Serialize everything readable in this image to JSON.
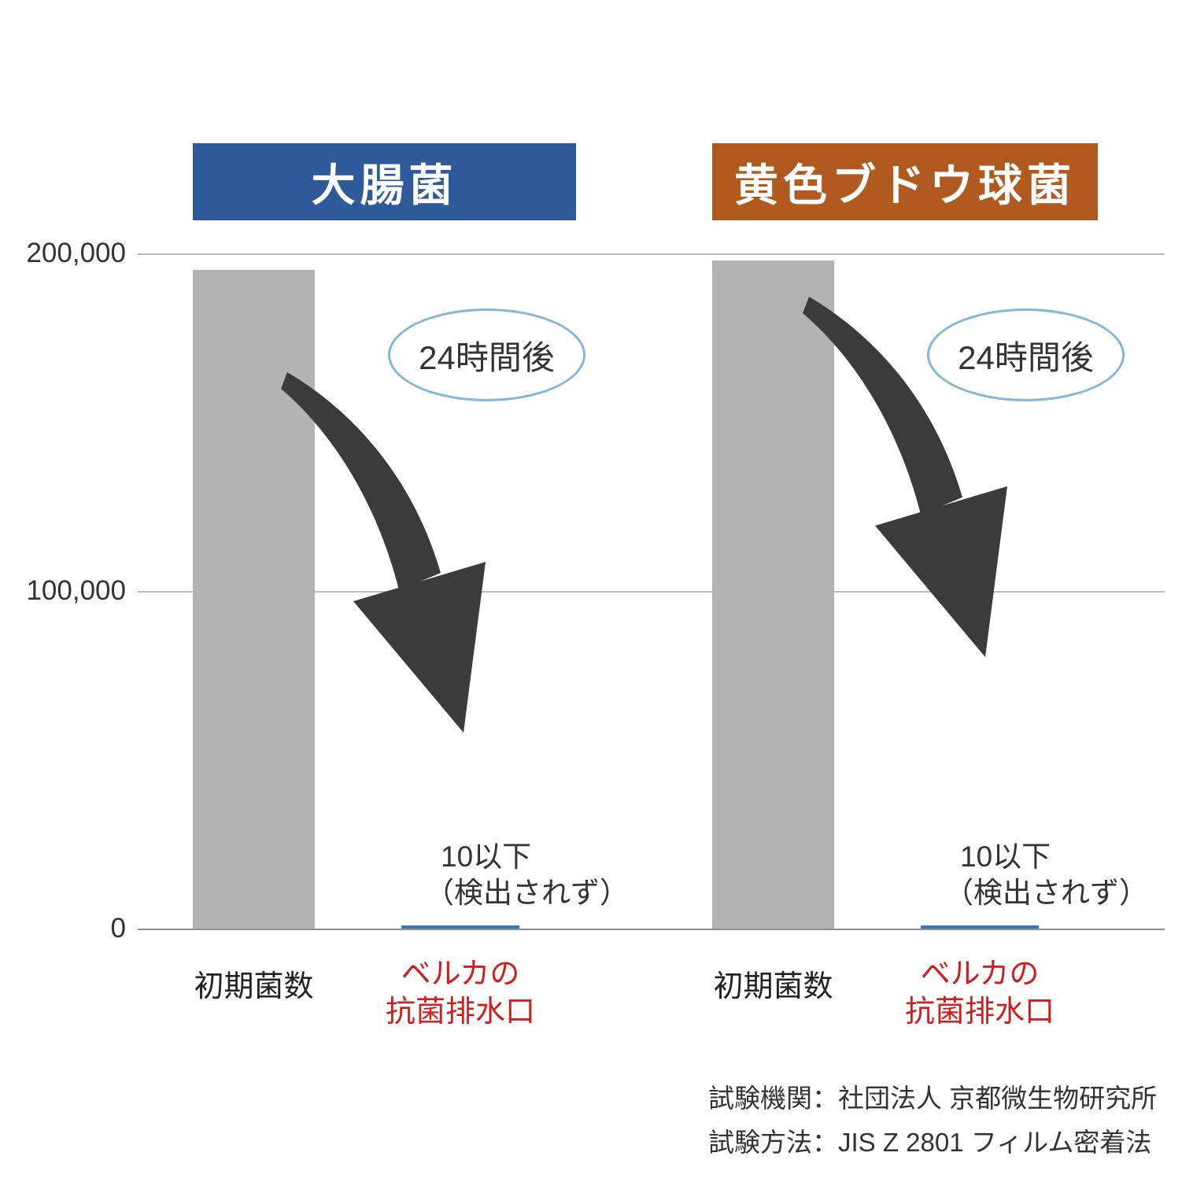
{
  "chart_data": [
    {
      "type": "bar",
      "title": "大腸菌",
      "categories": [
        "初期菌数",
        "ベルカの抗菌排水口"
      ],
      "values": [
        195000,
        10
      ],
      "ylim": [
        0,
        200000
      ],
      "yticks": [
        "0",
        "100,000",
        "200,000"
      ],
      "grid": true,
      "annotation": "24時間後",
      "result_line1": "10以下",
      "result_line2": "（検出されず）",
      "label_initial": "初期菌数",
      "label_after_line1": "ベルカの",
      "label_after_line2": "抗菌排水口"
    },
    {
      "type": "bar",
      "title": "黄色ブドウ球菌",
      "categories": [
        "初期菌数",
        "ベルカの抗菌排水口"
      ],
      "values": [
        198000,
        10
      ],
      "ylim": [
        0,
        200000
      ],
      "yticks": [
        "0",
        "100,000",
        "200,000"
      ],
      "grid": true,
      "annotation": "24時間後",
      "result_line1": "10以下",
      "result_line2": "（検出されず）",
      "label_initial": "初期菌数",
      "label_after_line1": "ベルカの",
      "label_after_line2": "抗菌排水口"
    }
  ],
  "y_axis": {
    "ticks": [
      "200,000",
      "100,000",
      "0"
    ]
  },
  "footer": {
    "line1": "試験機関：社団法人 京都微生物研究所",
    "line2": "試験方法：JIS Z 2801 フィルム密着法"
  },
  "colors": {
    "header_ecoli_blue": "#2e5a99",
    "header_staph_orange": "#b05a1f",
    "bar_gray": "#b3b3b3",
    "after_bar_blue": "#3a76b4",
    "label_red": "#d01e1e",
    "bubble_border_blue": "#84b6d9",
    "arrow_dark": "#3b3b3b"
  }
}
